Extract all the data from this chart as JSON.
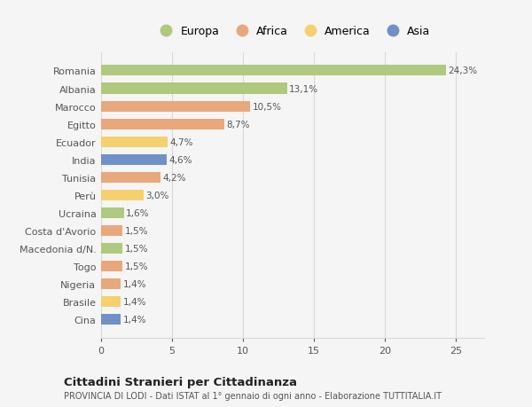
{
  "categories": [
    "Romania",
    "Albania",
    "Marocco",
    "Egitto",
    "Ecuador",
    "India",
    "Tunisia",
    "Perù",
    "Ucraina",
    "Costa d'Avorio",
    "Macedonia d/N.",
    "Togo",
    "Nigeria",
    "Brasile",
    "Cina"
  ],
  "values": [
    24.3,
    13.1,
    10.5,
    8.7,
    4.7,
    4.6,
    4.2,
    3.0,
    1.6,
    1.5,
    1.5,
    1.5,
    1.4,
    1.4,
    1.4
  ],
  "labels": [
    "24,3%",
    "13,1%",
    "10,5%",
    "8,7%",
    "4,7%",
    "4,6%",
    "4,2%",
    "3,0%",
    "1,6%",
    "1,5%",
    "1,5%",
    "1,5%",
    "1,4%",
    "1,4%",
    "1,4%"
  ],
  "colors": [
    "#afc97e",
    "#afc97e",
    "#e8a87c",
    "#e8a87c",
    "#f5d06e",
    "#7090c8",
    "#e8a87c",
    "#f5d06e",
    "#afc97e",
    "#e8a87c",
    "#afc97e",
    "#e8a87c",
    "#e8a87c",
    "#f5d06e",
    "#7090c8"
  ],
  "legend_labels": [
    "Europa",
    "Africa",
    "America",
    "Asia"
  ],
  "legend_colors": [
    "#afc97e",
    "#e8a87c",
    "#f5d06e",
    "#7090c8"
  ],
  "title": "Cittadini Stranieri per Cittadinanza",
  "subtitle": "PROVINCIA DI LODI - Dati ISTAT al 1° gennaio di ogni anno - Elaborazione TUTTITALIA.IT",
  "xlim": [
    0,
    27
  ],
  "xticks": [
    0,
    5,
    10,
    15,
    20,
    25
  ],
  "background_color": "#f5f5f5",
  "grid_color": "#d8d8d8",
  "bar_height": 0.6
}
